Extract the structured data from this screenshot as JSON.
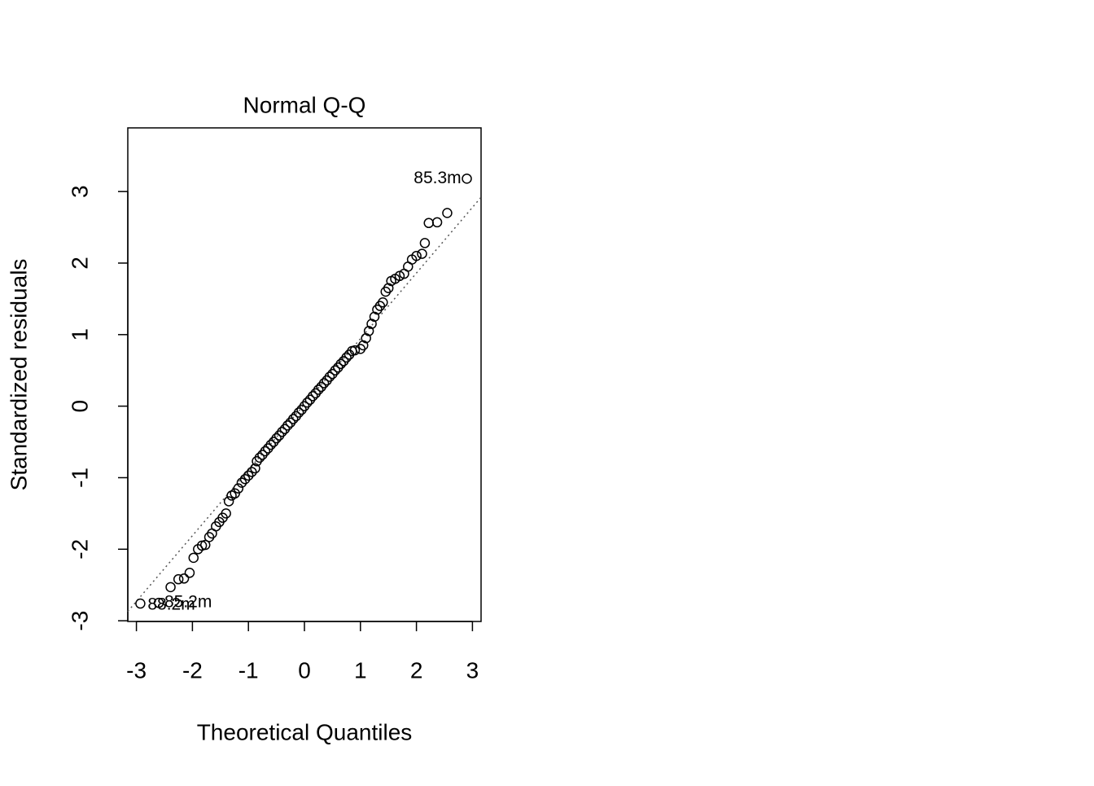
{
  "chart_data": {
    "type": "scatter",
    "title": "Normal Q-Q",
    "x_label": "Theoretical Quantiles",
    "y_label": "Standardized residuals",
    "xlim": [
      -3.154,
      3.154
    ],
    "ylim": [
      -3.01,
      3.89
    ],
    "xticks": [
      -3,
      -2,
      -1,
      0,
      1,
      2,
      3
    ],
    "yticks": [
      -3,
      -2,
      -1,
      0,
      1,
      2,
      3
    ],
    "color": "#000000",
    "reference_line": {
      "x": [
        -3.154,
        3.154
      ],
      "y": [
        -2.87,
        2.92
      ]
    },
    "x": [
      -2.93,
      -2.6,
      -2.39,
      -2.25,
      -2.15,
      -2.05,
      -1.98,
      -1.9,
      -1.83,
      -1.77,
      -1.7,
      -1.65,
      -1.58,
      -1.52,
      -1.46,
      -1.4,
      -1.35,
      -1.3,
      -1.24,
      -1.18,
      -1.12,
      -1.06,
      -1.0,
      -0.94,
      -0.88,
      -0.85,
      -0.8,
      -0.75,
      -0.7,
      -0.65,
      -0.6,
      -0.55,
      -0.5,
      -0.45,
      -0.4,
      -0.35,
      -0.3,
      -0.25,
      -0.2,
      -0.15,
      -0.1,
      -0.05,
      0,
      0.05,
      0.1,
      0.15,
      0.2,
      0.25,
      0.3,
      0.35,
      0.4,
      0.45,
      0.5,
      0.55,
      0.6,
      0.65,
      0.7,
      0.75,
      0.8,
      0.85,
      0.9,
      1.0,
      1.05,
      1.1,
      1.15,
      1.2,
      1.25,
      1.3,
      1.35,
      1.4,
      1.45,
      1.5,
      1.55,
      1.62,
      1.7,
      1.78,
      1.85,
      1.92,
      2.0,
      2.1,
      2.15,
      2.22,
      2.37,
      2.55,
      2.9
    ],
    "y": [
      -2.76,
      -2.75,
      -2.53,
      -2.42,
      -2.41,
      -2.33,
      -2.12,
      -2.0,
      -1.95,
      -1.94,
      -1.83,
      -1.78,
      -1.68,
      -1.62,
      -1.56,
      -1.5,
      -1.33,
      -1.25,
      -1.22,
      -1.15,
      -1.07,
      -1.02,
      -0.97,
      -0.92,
      -0.87,
      -0.77,
      -0.72,
      -0.68,
      -0.63,
      -0.59,
      -0.54,
      -0.5,
      -0.45,
      -0.41,
      -0.36,
      -0.32,
      -0.27,
      -0.23,
      -0.18,
      -0.14,
      -0.09,
      -0.05,
      0,
      0.05,
      0.09,
      0.14,
      0.18,
      0.23,
      0.27,
      0.32,
      0.36,
      0.41,
      0.45,
      0.5,
      0.54,
      0.59,
      0.63,
      0.68,
      0.72,
      0.77,
      0.78,
      0.8,
      0.85,
      0.95,
      1.05,
      1.15,
      1.25,
      1.35,
      1.4,
      1.45,
      1.6,
      1.65,
      1.75,
      1.78,
      1.82,
      1.85,
      1.95,
      2.05,
      2.1,
      2.13,
      2.28,
      2.56,
      2.57,
      2.7,
      3.18
    ],
    "annotations": [
      {
        "text": "85.3m",
        "x": 2.8,
        "y": 3.18
      },
      {
        "text": "88.2m",
        "x": -2.8,
        "y": -2.78
      },
      {
        "text": "85.2m",
        "x": -2.5,
        "y": -2.75
      }
    ]
  }
}
